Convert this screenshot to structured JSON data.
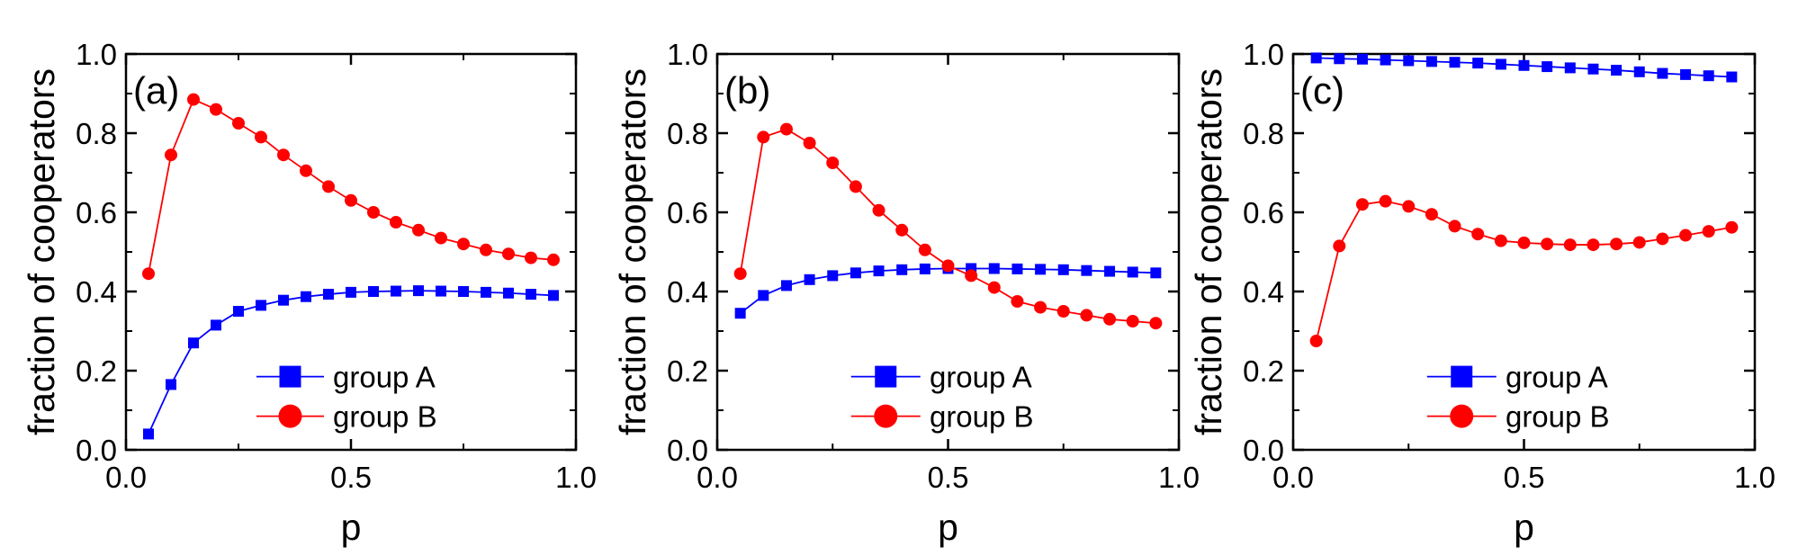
{
  "figure": {
    "colors": {
      "group_a": "#0000ff",
      "group_b": "#ff0000",
      "axis": "#000000"
    }
  },
  "chart_data": [
    {
      "type": "line",
      "panel_label": "(a)",
      "xlabel": "p",
      "ylabel": "fraction of cooperators",
      "xlim": [
        0.0,
        1.0
      ],
      "ylim": [
        0.0,
        1.0
      ],
      "xticks": [
        "0.0",
        "0.5",
        "1.0"
      ],
      "yticks": [
        "0.0",
        "0.2",
        "0.4",
        "0.6",
        "0.8",
        "1.0"
      ],
      "grid": false,
      "legend": "bottom-right",
      "x": [
        0.05,
        0.1,
        0.15,
        0.2,
        0.25,
        0.3,
        0.35,
        0.4,
        0.45,
        0.5,
        0.55,
        0.6,
        0.65,
        0.7,
        0.75,
        0.8,
        0.85,
        0.9,
        0.95
      ],
      "series": [
        {
          "name": "group A",
          "marker": "square",
          "color": "#0000ff",
          "values": [
            0.04,
            0.165,
            0.27,
            0.315,
            0.35,
            0.365,
            0.378,
            0.387,
            0.393,
            0.398,
            0.4,
            0.401,
            0.402,
            0.401,
            0.4,
            0.398,
            0.396,
            0.393,
            0.39
          ]
        },
        {
          "name": "group B",
          "marker": "circle",
          "color": "#ff0000",
          "values": [
            0.445,
            0.745,
            0.885,
            0.86,
            0.825,
            0.79,
            0.745,
            0.705,
            0.665,
            0.63,
            0.6,
            0.575,
            0.555,
            0.535,
            0.52,
            0.505,
            0.495,
            0.485,
            0.48
          ]
        }
      ]
    },
    {
      "type": "line",
      "panel_label": "(b)",
      "xlabel": "p",
      "ylabel": "fraction of cooperators",
      "xlim": [
        0.0,
        1.0
      ],
      "ylim": [
        0.0,
        1.0
      ],
      "xticks": [
        "0.0",
        "0.5",
        "1.0"
      ],
      "yticks": [
        "0.0",
        "0.2",
        "0.4",
        "0.6",
        "0.8",
        "1.0"
      ],
      "grid": false,
      "legend": "bottom-right",
      "x": [
        0.05,
        0.1,
        0.15,
        0.2,
        0.25,
        0.3,
        0.35,
        0.4,
        0.45,
        0.5,
        0.55,
        0.6,
        0.65,
        0.7,
        0.75,
        0.8,
        0.85,
        0.9,
        0.95
      ],
      "series": [
        {
          "name": "group A",
          "marker": "square",
          "color": "#0000ff",
          "values": [
            0.345,
            0.39,
            0.415,
            0.43,
            0.44,
            0.447,
            0.452,
            0.455,
            0.457,
            0.458,
            0.458,
            0.458,
            0.457,
            0.456,
            0.455,
            0.453,
            0.451,
            0.449,
            0.447
          ]
        },
        {
          "name": "group B",
          "marker": "circle",
          "color": "#ff0000",
          "values": [
            0.445,
            0.79,
            0.81,
            0.775,
            0.725,
            0.665,
            0.605,
            0.555,
            0.505,
            0.465,
            0.44,
            0.41,
            0.375,
            0.36,
            0.35,
            0.34,
            0.33,
            0.325,
            0.32
          ]
        }
      ]
    },
    {
      "type": "line",
      "panel_label": "(c)",
      "xlabel": "p",
      "ylabel": "fraction of cooperators",
      "xlim": [
        0.0,
        1.0
      ],
      "ylim": [
        0.0,
        1.0
      ],
      "xticks": [
        "0.0",
        "0.5",
        "1.0"
      ],
      "yticks": [
        "0.0",
        "0.2",
        "0.4",
        "0.6",
        "0.8",
        "1.0"
      ],
      "grid": false,
      "legend": "bottom-right",
      "x": [
        0.05,
        0.1,
        0.15,
        0.2,
        0.25,
        0.3,
        0.35,
        0.4,
        0.45,
        0.5,
        0.55,
        0.6,
        0.65,
        0.7,
        0.75,
        0.8,
        0.85,
        0.9,
        0.95
      ],
      "series": [
        {
          "name": "group A",
          "marker": "square",
          "color": "#0000ff",
          "values": [
            0.99,
            0.988,
            0.987,
            0.985,
            0.983,
            0.981,
            0.979,
            0.977,
            0.974,
            0.971,
            0.968,
            0.965,
            0.962,
            0.959,
            0.955,
            0.951,
            0.948,
            0.945,
            0.942
          ]
        },
        {
          "name": "group B",
          "marker": "circle",
          "color": "#ff0000",
          "values": [
            0.275,
            0.515,
            0.62,
            0.628,
            0.615,
            0.595,
            0.565,
            0.545,
            0.528,
            0.523,
            0.52,
            0.518,
            0.518,
            0.52,
            0.524,
            0.533,
            0.542,
            0.552,
            0.562
          ]
        }
      ]
    }
  ]
}
